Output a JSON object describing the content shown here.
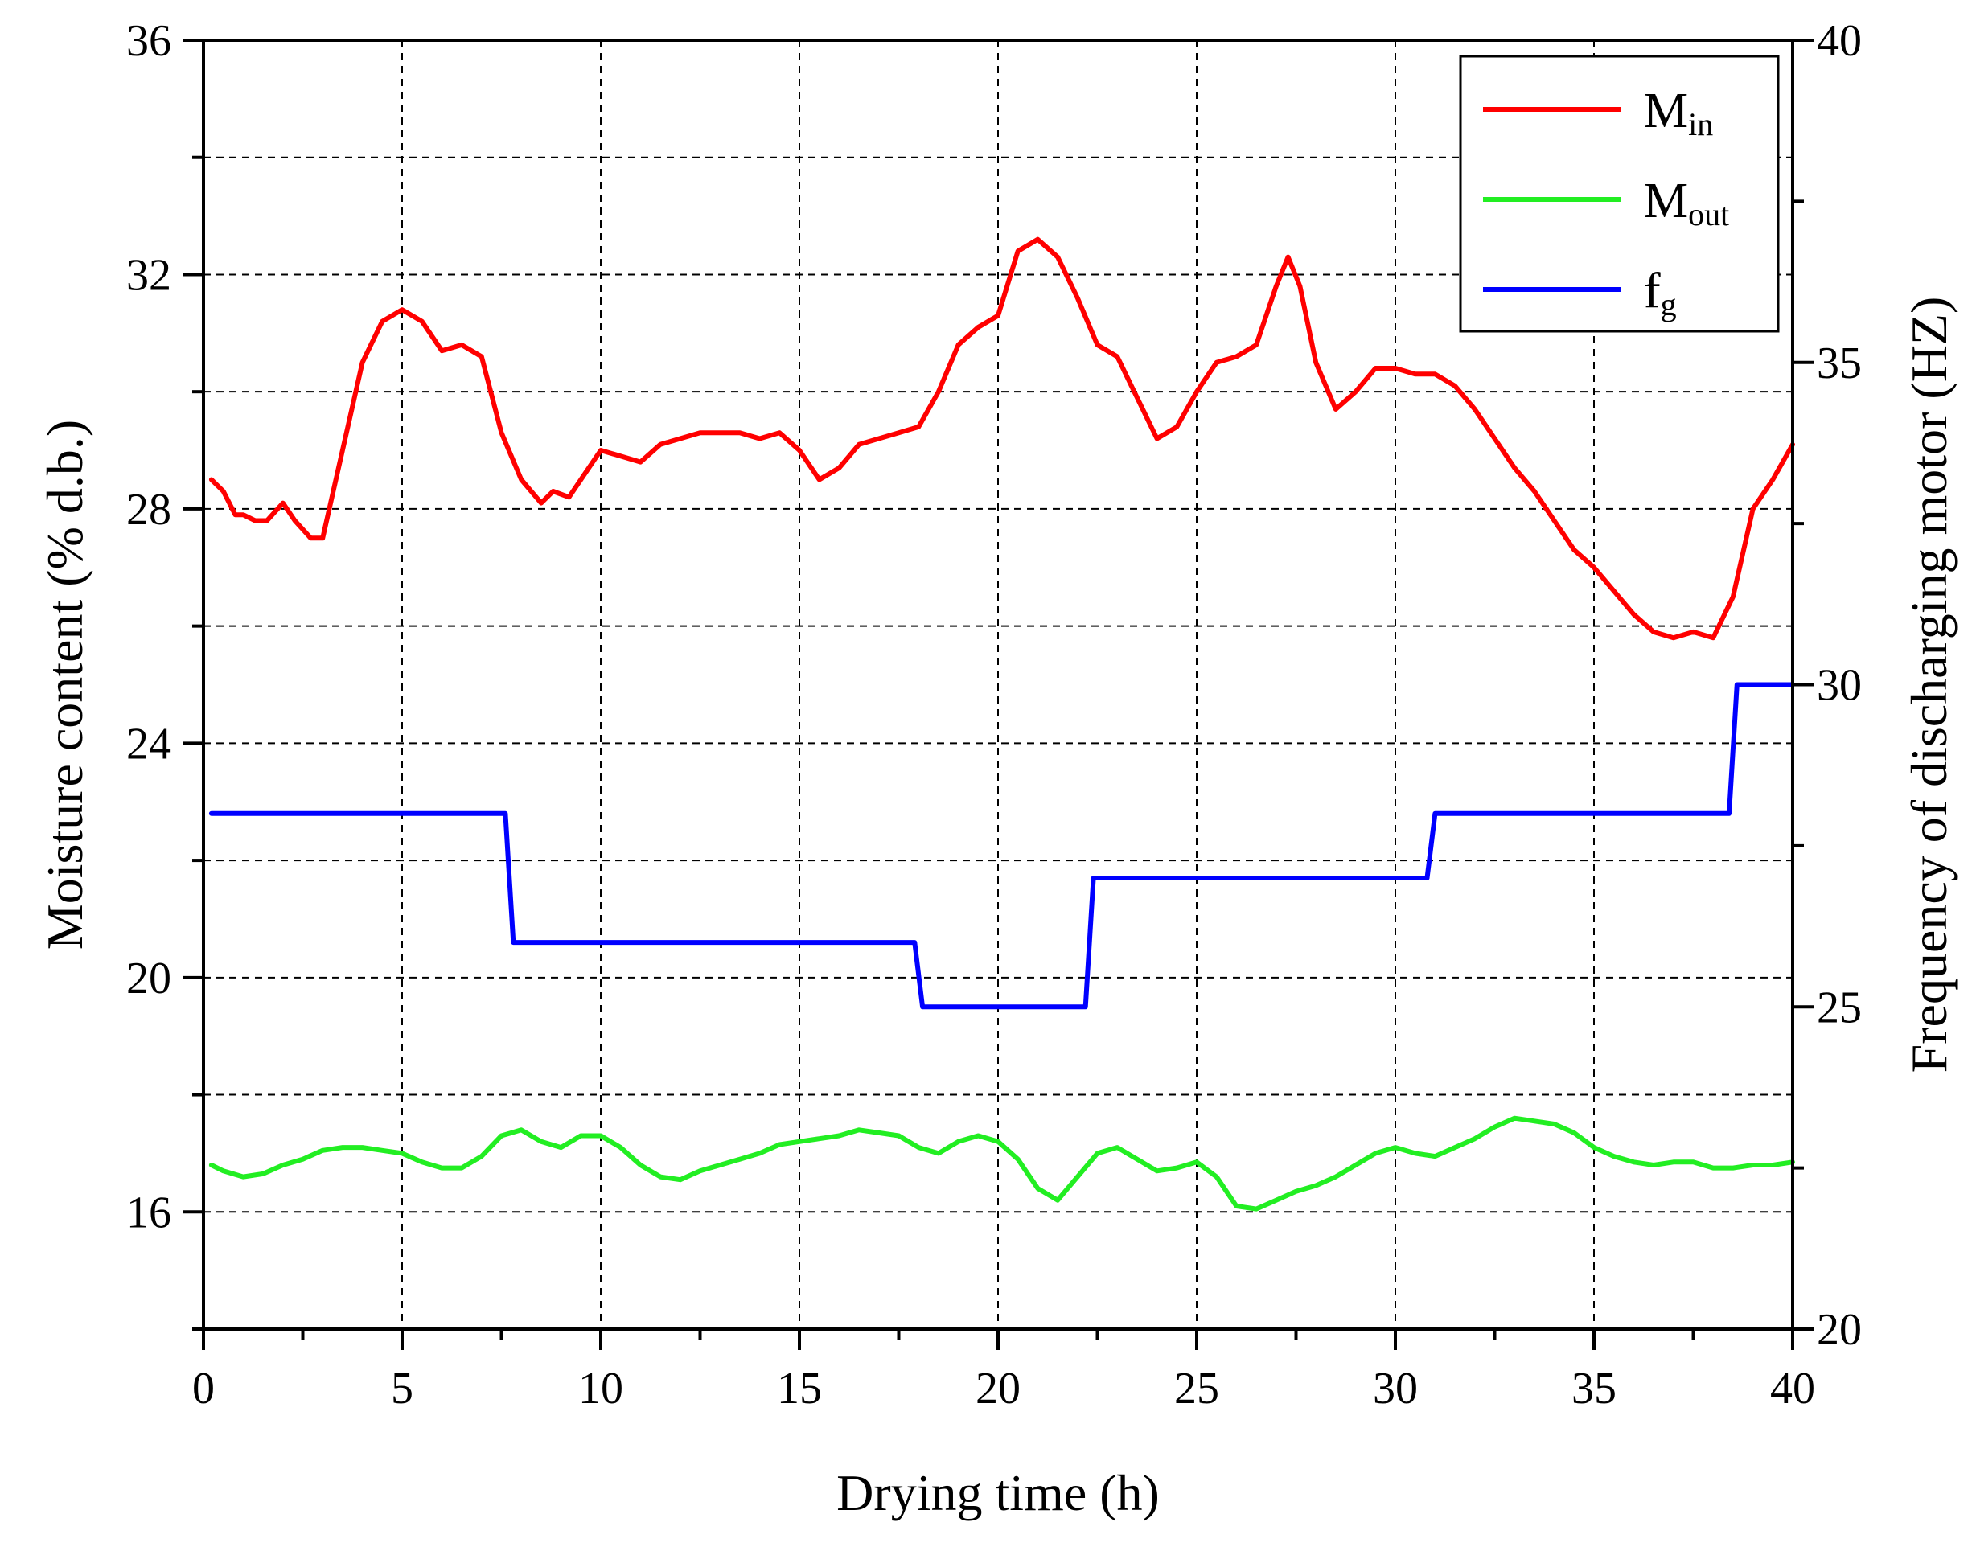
{
  "chart_data": {
    "type": "line",
    "xlabel": "Drying time (h)",
    "ylabel": "Moisture content (% d.b.)",
    "y2label": "Frequency of discharging motor (HZ)",
    "xlim": [
      0,
      40
    ],
    "ylim": [
      14,
      36
    ],
    "y2lim": [
      20,
      40
    ],
    "xticks": [
      "0",
      "5",
      "10",
      "15",
      "20",
      "25",
      "30",
      "35",
      "40"
    ],
    "yticks": [
      "16",
      "20",
      "24",
      "28",
      "32",
      "36"
    ],
    "y2ticks": [
      "20",
      "25",
      "30",
      "35",
      "40"
    ],
    "grid": true,
    "legend_position": "top-right",
    "series": [
      {
        "name": "Min",
        "label_main": "M",
        "label_sub": "in",
        "axis": "left",
        "color": "#ff0000",
        "x": [
          0.2,
          0.5,
          0.8,
          1.0,
          1.3,
          1.6,
          2.0,
          2.3,
          2.7,
          3.0,
          3.5,
          4.0,
          4.5,
          5.0,
          5.5,
          6.0,
          6.5,
          7.0,
          7.5,
          8.0,
          8.5,
          8.8,
          9.2,
          9.6,
          10.0,
          10.5,
          11.0,
          11.5,
          12.0,
          12.5,
          13.0,
          13.5,
          14.0,
          14.5,
          15.0,
          15.5,
          16.0,
          16.5,
          17.0,
          17.5,
          18.0,
          18.5,
          19.0,
          19.5,
          20.0,
          20.5,
          21.0,
          21.5,
          22.0,
          22.5,
          23.0,
          23.5,
          24.0,
          24.5,
          25.0,
          25.5,
          26.0,
          26.5,
          27.0,
          27.3,
          27.6,
          28.0,
          28.5,
          29.0,
          29.5,
          30.0,
          30.5,
          31.0,
          31.5,
          32.0,
          32.5,
          33.0,
          33.5,
          34.0,
          34.5,
          35.0,
          35.5,
          36.0,
          36.5,
          37.0,
          37.5,
          38.0,
          38.5,
          39.0,
          39.5,
          40.0
        ],
        "y": [
          28.5,
          28.3,
          27.9,
          27.9,
          27.8,
          27.8,
          28.1,
          27.8,
          27.5,
          27.5,
          29.0,
          30.5,
          31.2,
          31.4,
          31.2,
          30.7,
          30.8,
          30.6,
          29.3,
          28.5,
          28.1,
          28.3,
          28.2,
          28.6,
          29.0,
          28.9,
          28.8,
          29.1,
          29.2,
          29.3,
          29.3,
          29.3,
          29.2,
          29.3,
          29.0,
          28.5,
          28.7,
          29.1,
          29.2,
          29.3,
          29.4,
          30.0,
          30.8,
          31.1,
          31.3,
          32.4,
          32.6,
          32.3,
          31.6,
          30.8,
          30.6,
          29.9,
          29.2,
          29.4,
          30.0,
          30.5,
          30.6,
          30.8,
          31.8,
          32.3,
          31.8,
          30.5,
          29.7,
          30.0,
          30.4,
          30.4,
          30.3,
          30.3,
          30.1,
          29.7,
          29.2,
          28.7,
          28.3,
          27.8,
          27.3,
          27.0,
          26.6,
          26.2,
          25.9,
          25.8,
          25.9,
          25.8,
          26.5,
          28.0,
          28.5,
          29.1
        ]
      },
      {
        "name": "Mout",
        "label_main": "M",
        "label_sub": "out",
        "axis": "left",
        "color": "#22ee22",
        "x": [
          0.2,
          0.5,
          1.0,
          1.5,
          2.0,
          2.5,
          3.0,
          3.5,
          4.0,
          4.5,
          5.0,
          5.5,
          6.0,
          6.5,
          7.0,
          7.5,
          8.0,
          8.5,
          9.0,
          9.5,
          10.0,
          10.5,
          11.0,
          11.5,
          12.0,
          12.5,
          13.0,
          13.5,
          14.0,
          14.5,
          15.0,
          15.5,
          16.0,
          16.5,
          17.0,
          17.5,
          18.0,
          18.5,
          19.0,
          19.5,
          20.0,
          20.5,
          21.0,
          21.5,
          22.0,
          22.5,
          23.0,
          23.5,
          24.0,
          24.5,
          25.0,
          25.5,
          26.0,
          26.5,
          27.0,
          27.5,
          28.0,
          28.5,
          29.0,
          29.5,
          30.0,
          30.5,
          31.0,
          31.5,
          32.0,
          32.5,
          33.0,
          33.5,
          34.0,
          34.5,
          35.0,
          35.5,
          36.0,
          36.5,
          37.0,
          37.5,
          38.0,
          38.5,
          39.0,
          39.5,
          40.0
        ],
        "y": [
          16.8,
          16.7,
          16.6,
          16.65,
          16.8,
          16.9,
          17.05,
          17.1,
          17.1,
          17.05,
          17.0,
          16.85,
          16.75,
          16.75,
          16.95,
          17.3,
          17.4,
          17.2,
          17.1,
          17.3,
          17.3,
          17.1,
          16.8,
          16.6,
          16.55,
          16.7,
          16.8,
          16.9,
          17.0,
          17.15,
          17.2,
          17.25,
          17.3,
          17.4,
          17.35,
          17.3,
          17.1,
          17.0,
          17.2,
          17.3,
          17.2,
          16.9,
          16.4,
          16.2,
          16.6,
          17.0,
          17.1,
          16.9,
          16.7,
          16.75,
          16.85,
          16.6,
          16.1,
          16.05,
          16.2,
          16.35,
          16.45,
          16.6,
          16.8,
          17.0,
          17.1,
          17.0,
          16.95,
          17.1,
          17.25,
          17.45,
          17.6,
          17.55,
          17.5,
          17.35,
          17.1,
          16.95,
          16.85,
          16.8,
          16.85,
          16.85,
          16.75,
          16.75,
          16.8,
          16.8,
          16.85
        ]
      },
      {
        "name": "fg",
        "label_main": "f",
        "label_sub": "g",
        "axis": "right",
        "color": "#0000ff",
        "x": [
          0.2,
          7.6,
          7.8,
          17.9,
          18.1,
          22.2,
          22.4,
          30.8,
          31.0,
          38.4,
          38.6,
          40.0
        ],
        "y": [
          28,
          28,
          26,
          26,
          25,
          25,
          27,
          27,
          28,
          28,
          30,
          30
        ]
      }
    ]
  }
}
